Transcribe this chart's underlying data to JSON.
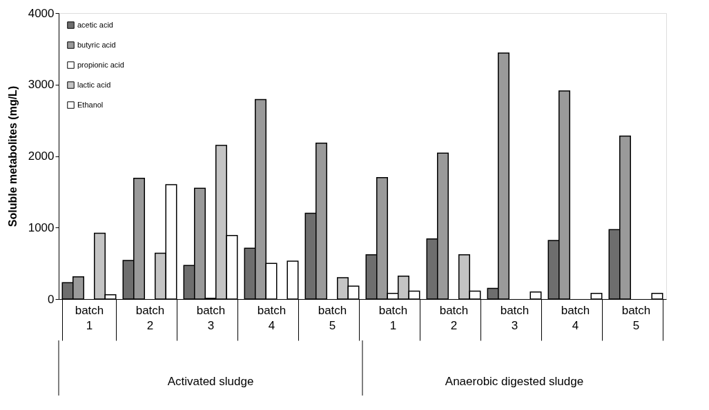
{
  "chart_data": {
    "type": "bar",
    "ylabel": "Soluble metabolites (mg/L)",
    "categories": [
      "batch 1",
      "batch 2",
      "batch 3",
      "batch 4",
      "batch 5",
      "batch 1",
      "batch 2",
      "batch 3",
      "batch 4",
      "batch 5"
    ],
    "series": [
      {
        "name": "acetic acid",
        "color": "#6e6e6e",
        "values": [
          230,
          540,
          470,
          710,
          1200,
          620,
          840,
          150,
          820,
          970
        ]
      },
      {
        "name": "butyric acid",
        "color": "#9a9a9a",
        "values": [
          310,
          1690,
          1550,
          2790,
          2180,
          1700,
          2040,
          3440,
          2910,
          2280
        ]
      },
      {
        "name": "propionic acid",
        "color": "#ffffff",
        "values": [
          null,
          null,
          10,
          500,
          null,
          80,
          null,
          null,
          null,
          null
        ]
      },
      {
        "name": "lactic acid",
        "color": "#c4c4c4",
        "values": [
          920,
          640,
          2150,
          null,
          300,
          320,
          620,
          null,
          null,
          null
        ]
      },
      {
        "name": "Ethanol",
        "color": "#fefefe",
        "values": [
          60,
          1600,
          890,
          530,
          180,
          110,
          110,
          100,
          80,
          80
        ]
      }
    ],
    "annotations": [
      "Activated sludge",
      "Anaerobic digested sludge"
    ],
    "ylim": [
      0,
      4000
    ],
    "yticks": [
      0,
      1000,
      2000,
      3000,
      4000
    ],
    "grid": false,
    "legend": "top left"
  }
}
